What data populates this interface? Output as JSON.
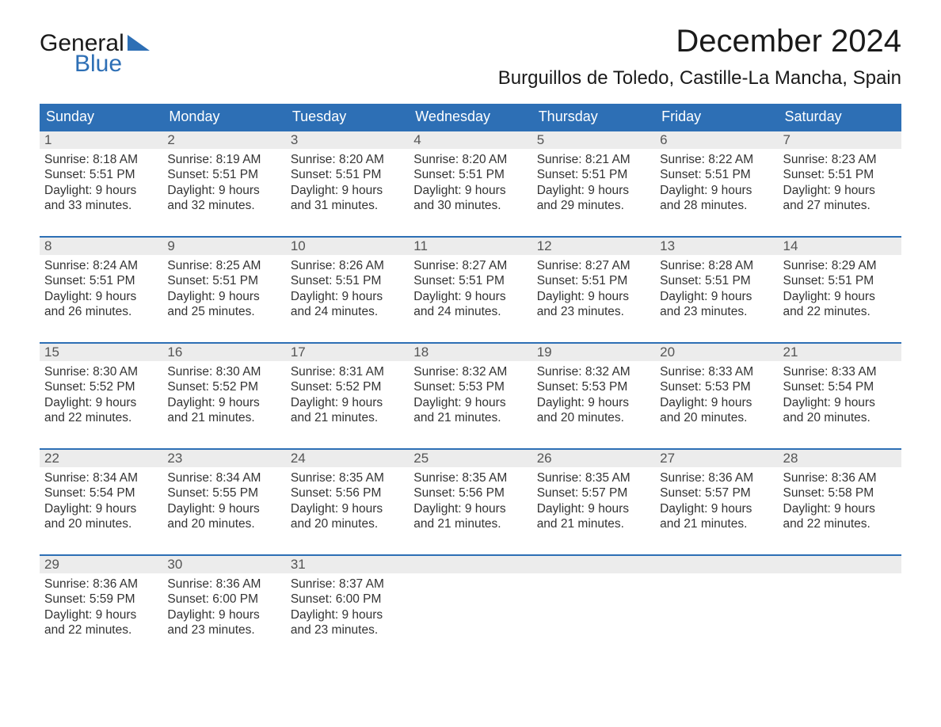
{
  "logo": {
    "line1": "General",
    "line2": "Blue",
    "color1": "#1a1a1a",
    "color2": "#2d6fb5"
  },
  "title": "December 2024",
  "location": "Burguillos de Toledo, Castille-La Mancha, Spain",
  "colors": {
    "header_bg": "#2d6fb5",
    "header_text": "#ffffff",
    "daynum_bg": "#ececec",
    "daynum_text": "#555555",
    "body_text": "#333333",
    "week_border": "#2d6fb5",
    "page_bg": "#ffffff"
  },
  "typography": {
    "title_fontsize": 40,
    "location_fontsize": 24,
    "dayheader_fontsize": 18,
    "daynum_fontsize": 17,
    "detail_fontsize": 15.5
  },
  "day_headers": [
    "Sunday",
    "Monday",
    "Tuesday",
    "Wednesday",
    "Thursday",
    "Friday",
    "Saturday"
  ],
  "weeks": [
    [
      {
        "n": "1",
        "sunrise": "8:18 AM",
        "sunset": "5:51 PM",
        "dl1": "Daylight: 9 hours",
        "dl2": "and 33 minutes."
      },
      {
        "n": "2",
        "sunrise": "8:19 AM",
        "sunset": "5:51 PM",
        "dl1": "Daylight: 9 hours",
        "dl2": "and 32 minutes."
      },
      {
        "n": "3",
        "sunrise": "8:20 AM",
        "sunset": "5:51 PM",
        "dl1": "Daylight: 9 hours",
        "dl2": "and 31 minutes."
      },
      {
        "n": "4",
        "sunrise": "8:20 AM",
        "sunset": "5:51 PM",
        "dl1": "Daylight: 9 hours",
        "dl2": "and 30 minutes."
      },
      {
        "n": "5",
        "sunrise": "8:21 AM",
        "sunset": "5:51 PM",
        "dl1": "Daylight: 9 hours",
        "dl2": "and 29 minutes."
      },
      {
        "n": "6",
        "sunrise": "8:22 AM",
        "sunset": "5:51 PM",
        "dl1": "Daylight: 9 hours",
        "dl2": "and 28 minutes."
      },
      {
        "n": "7",
        "sunrise": "8:23 AM",
        "sunset": "5:51 PM",
        "dl1": "Daylight: 9 hours",
        "dl2": "and 27 minutes."
      }
    ],
    [
      {
        "n": "8",
        "sunrise": "8:24 AM",
        "sunset": "5:51 PM",
        "dl1": "Daylight: 9 hours",
        "dl2": "and 26 minutes."
      },
      {
        "n": "9",
        "sunrise": "8:25 AM",
        "sunset": "5:51 PM",
        "dl1": "Daylight: 9 hours",
        "dl2": "and 25 minutes."
      },
      {
        "n": "10",
        "sunrise": "8:26 AM",
        "sunset": "5:51 PM",
        "dl1": "Daylight: 9 hours",
        "dl2": "and 24 minutes."
      },
      {
        "n": "11",
        "sunrise": "8:27 AM",
        "sunset": "5:51 PM",
        "dl1": "Daylight: 9 hours",
        "dl2": "and 24 minutes."
      },
      {
        "n": "12",
        "sunrise": "8:27 AM",
        "sunset": "5:51 PM",
        "dl1": "Daylight: 9 hours",
        "dl2": "and 23 minutes."
      },
      {
        "n": "13",
        "sunrise": "8:28 AM",
        "sunset": "5:51 PM",
        "dl1": "Daylight: 9 hours",
        "dl2": "and 23 minutes."
      },
      {
        "n": "14",
        "sunrise": "8:29 AM",
        "sunset": "5:51 PM",
        "dl1": "Daylight: 9 hours",
        "dl2": "and 22 minutes."
      }
    ],
    [
      {
        "n": "15",
        "sunrise": "8:30 AM",
        "sunset": "5:52 PM",
        "dl1": "Daylight: 9 hours",
        "dl2": "and 22 minutes."
      },
      {
        "n": "16",
        "sunrise": "8:30 AM",
        "sunset": "5:52 PM",
        "dl1": "Daylight: 9 hours",
        "dl2": "and 21 minutes."
      },
      {
        "n": "17",
        "sunrise": "8:31 AM",
        "sunset": "5:52 PM",
        "dl1": "Daylight: 9 hours",
        "dl2": "and 21 minutes."
      },
      {
        "n": "18",
        "sunrise": "8:32 AM",
        "sunset": "5:53 PM",
        "dl1": "Daylight: 9 hours",
        "dl2": "and 21 minutes."
      },
      {
        "n": "19",
        "sunrise": "8:32 AM",
        "sunset": "5:53 PM",
        "dl1": "Daylight: 9 hours",
        "dl2": "and 20 minutes."
      },
      {
        "n": "20",
        "sunrise": "8:33 AM",
        "sunset": "5:53 PM",
        "dl1": "Daylight: 9 hours",
        "dl2": "and 20 minutes."
      },
      {
        "n": "21",
        "sunrise": "8:33 AM",
        "sunset": "5:54 PM",
        "dl1": "Daylight: 9 hours",
        "dl2": "and 20 minutes."
      }
    ],
    [
      {
        "n": "22",
        "sunrise": "8:34 AM",
        "sunset": "5:54 PM",
        "dl1": "Daylight: 9 hours",
        "dl2": "and 20 minutes."
      },
      {
        "n": "23",
        "sunrise": "8:34 AM",
        "sunset": "5:55 PM",
        "dl1": "Daylight: 9 hours",
        "dl2": "and 20 minutes."
      },
      {
        "n": "24",
        "sunrise": "8:35 AM",
        "sunset": "5:56 PM",
        "dl1": "Daylight: 9 hours",
        "dl2": "and 20 minutes."
      },
      {
        "n": "25",
        "sunrise": "8:35 AM",
        "sunset": "5:56 PM",
        "dl1": "Daylight: 9 hours",
        "dl2": "and 21 minutes."
      },
      {
        "n": "26",
        "sunrise": "8:35 AM",
        "sunset": "5:57 PM",
        "dl1": "Daylight: 9 hours",
        "dl2": "and 21 minutes."
      },
      {
        "n": "27",
        "sunrise": "8:36 AM",
        "sunset": "5:57 PM",
        "dl1": "Daylight: 9 hours",
        "dl2": "and 21 minutes."
      },
      {
        "n": "28",
        "sunrise": "8:36 AM",
        "sunset": "5:58 PM",
        "dl1": "Daylight: 9 hours",
        "dl2": "and 22 minutes."
      }
    ],
    [
      {
        "n": "29",
        "sunrise": "8:36 AM",
        "sunset": "5:59 PM",
        "dl1": "Daylight: 9 hours",
        "dl2": "and 22 minutes."
      },
      {
        "n": "30",
        "sunrise": "8:36 AM",
        "sunset": "6:00 PM",
        "dl1": "Daylight: 9 hours",
        "dl2": "and 23 minutes."
      },
      {
        "n": "31",
        "sunrise": "8:37 AM",
        "sunset": "6:00 PM",
        "dl1": "Daylight: 9 hours",
        "dl2": "and 23 minutes."
      },
      {
        "empty": true
      },
      {
        "empty": true
      },
      {
        "empty": true
      },
      {
        "empty": true
      }
    ]
  ],
  "labels": {
    "sunrise_prefix": "Sunrise: ",
    "sunset_prefix": "Sunset: "
  }
}
